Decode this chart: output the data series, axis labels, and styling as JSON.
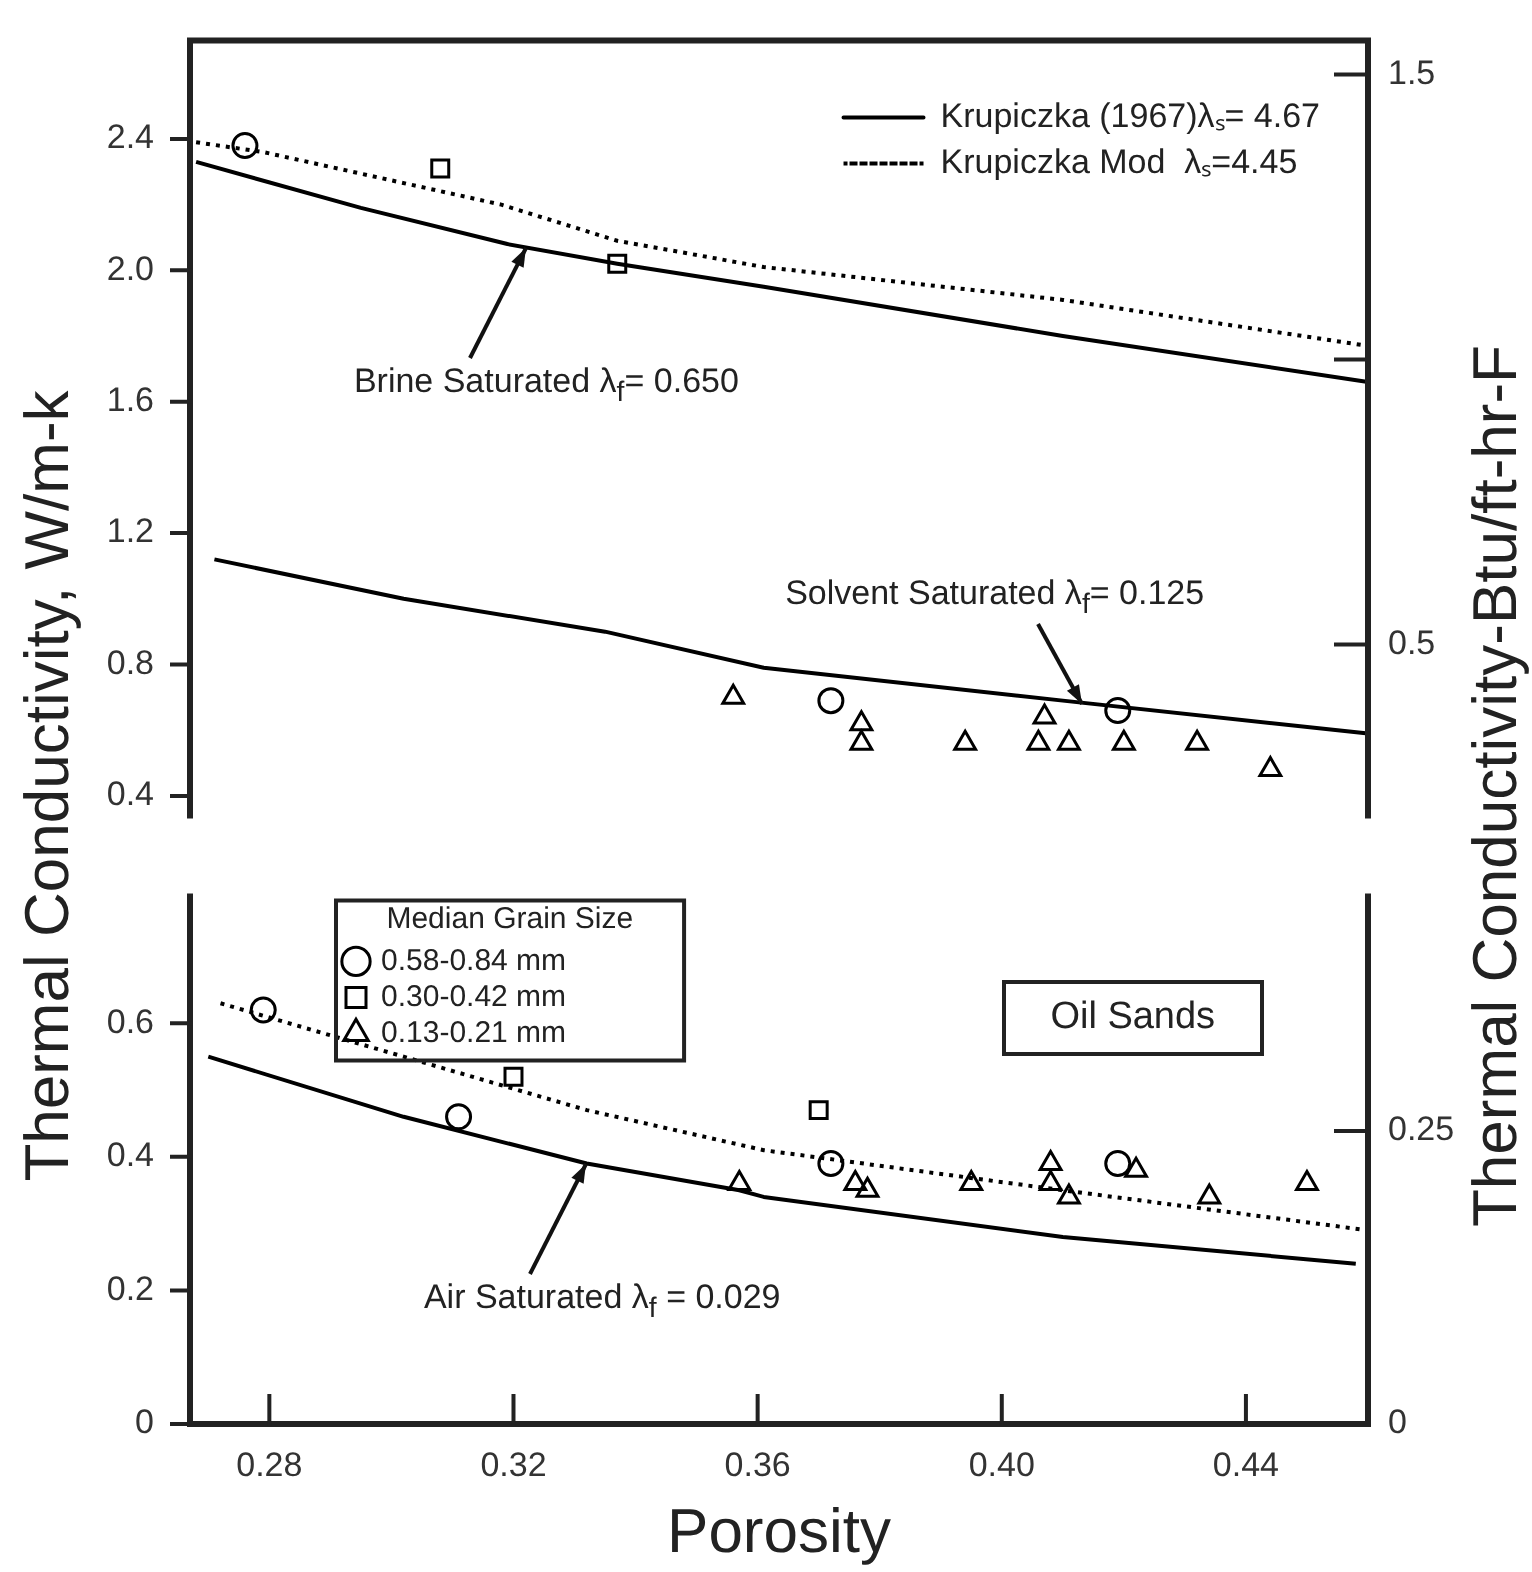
{
  "chart_data": [
    {
      "type": "line",
      "xlim": [
        0.267,
        0.46
      ],
      "ylim": [
        0.34,
        2.7
      ],
      "y2lim": [
        0.2,
        1.56
      ],
      "yticks": [
        0.4,
        0.8,
        1.2,
        1.6,
        {
          "value": 2,
          "label": "2.0"
        },
        2.4
      ],
      "y2ticks": [
        0.5,
        {
          "value": 1,
          "label": null
        },
        1.5
      ],
      "tick_labels": "y",
      "legend": "top right",
      "series": [
        {
          "name": "Krupiczka (1967)λₛ= 4.67",
          "color": "#000000",
          "line_style": "solid",
          "marker": "none",
          "x": [
            0.268,
            0.295,
            0.319,
            0.337,
            0.361,
            0.41,
            0.46
          ],
          "values": [
            2.33,
            2.19,
            2.08,
            2.02,
            1.95,
            1.8,
            1.66
          ]
        },
        {
          "name": "Krupiczka Mod  λₛ=4.45",
          "color": "#000000",
          "line_style": "dotted",
          "marker": "none",
          "x": [
            0.268,
            0.279,
            0.318,
            0.337,
            0.361,
            0.41,
            0.46
          ],
          "values": [
            2.39,
            2.36,
            2.2,
            2.09,
            2.01,
            1.91,
            1.77
          ]
        },
        {
          "color": "#000000",
          "line_style": "solid",
          "marker": "none",
          "x": [
            0.271,
            0.302,
            0.335,
            0.361,
            0.41,
            0.46
          ],
          "values": [
            1.12,
            1.0,
            0.9,
            0.79,
            0.69,
            0.59
          ]
        },
        {
          "type": "scatter",
          "color": "#000000",
          "marker": "circle",
          "x": [
            0.276,
            0.372,
            0.419
          ],
          "values": [
            2.38,
            0.69,
            0.66
          ]
        },
        {
          "type": "scatter",
          "color": "#000000",
          "marker": "square",
          "x": [
            0.308,
            0.337
          ],
          "values": [
            2.31,
            2.02
          ]
        },
        {
          "type": "scatter",
          "color": "#000000",
          "marker": "triangle",
          "x": [
            0.356,
            0.377,
            0.377,
            0.394,
            0.407,
            0.406,
            0.411,
            0.42,
            0.432,
            0.444
          ],
          "values": [
            0.7,
            0.62,
            0.56,
            0.56,
            0.64,
            0.56,
            0.56,
            0.56,
            0.56,
            0.48
          ]
        }
      ],
      "annotations": [
        {
          "text": "Brine Saturated λ$_{f}$= 0.650",
          "x": 0.322,
          "y": 2.07
        },
        {
          "text": "Solvent Saturated λ$_{f}$= 0.125",
          "x": 0.413,
          "y": 0.68
        }
      ]
    },
    {
      "type": "line",
      "xlabel": "Porosity",
      "ylabel": "Thermal Conductivity, W/m-k",
      "y2label": "Thermal Conductivity-Btu/ft-hr-F",
      "xlim": [
        0.267,
        0.46
      ],
      "ylim": [
        0,
        0.79
      ],
      "y2lim": [
        0,
        0.45
      ],
      "xticks": [
        0.28,
        0.32,
        0.36,
        {
          "value": 0.4,
          "label": "0.40"
        },
        0.44
      ],
      "yticks": [
        0,
        0.2,
        0.4,
        0.6
      ],
      "y2ticks": [
        0,
        0.25
      ],
      "legend": "top left",
      "legend_title": "Median Grain Size",
      "series": [
        {
          "color": "#000000",
          "line_style": "solid",
          "marker": "none",
          "x": [
            0.27,
            0.302,
            0.332,
            0.357,
            0.361,
            0.41,
            0.458
          ],
          "values": [
            0.55,
            0.46,
            0.39,
            0.35,
            0.34,
            0.28,
            0.24
          ]
        },
        {
          "color": "#000000",
          "line_style": "dotted",
          "marker": "none",
          "x": [
            0.272,
            0.302,
            0.332,
            0.361,
            0.41,
            0.46
          ],
          "values": [
            0.63,
            0.55,
            0.47,
            0.41,
            0.35,
            0.29
          ]
        },
        {
          "name": "0.58-0.84 mm",
          "type": "scatter",
          "color": "#000000",
          "marker": "circle",
          "x": [
            0.279,
            0.311,
            0.372,
            0.419
          ],
          "values": [
            0.62,
            0.46,
            0.39,
            0.39
          ]
        },
        {
          "name": "0.30-0.42 mm",
          "type": "scatter",
          "color": "#000000",
          "marker": "square",
          "x": [
            0.32,
            0.37
          ],
          "values": [
            0.52,
            0.47
          ]
        },
        {
          "name": "0.13-0.21 mm",
          "type": "scatter",
          "color": "#000000",
          "marker": "triangle",
          "x": [
            0.357,
            0.376,
            0.378,
            0.395,
            0.408,
            0.408,
            0.411,
            0.422,
            0.434,
            0.45
          ],
          "values": [
            0.36,
            0.36,
            0.35,
            0.36,
            0.39,
            0.36,
            0.34,
            0.38,
            0.34,
            0.36
          ]
        }
      ],
      "annotations": [
        {
          "text": "Air Saturated λ$_{f}$ = 0.029",
          "x": 0.332,
          "y": 0.39
        },
        "Oil Sands"
      ]
    }
  ]
}
